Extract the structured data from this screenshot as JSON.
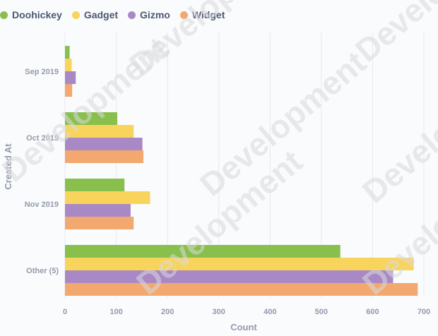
{
  "legend": {
    "items": [
      {
        "label": "Doohickey",
        "color": "#88bf4d"
      },
      {
        "label": "Gadget",
        "color": "#f9d45c"
      },
      {
        "label": "Gizmo",
        "color": "#a989c5"
      },
      {
        "label": "Widget",
        "color": "#f2a86f"
      }
    ]
  },
  "watermark": "Development",
  "chart_data": {
    "type": "bar",
    "orientation": "horizontal",
    "categories": [
      "Sep 2019",
      "Oct 2019",
      "Nov 2019",
      "Other (5)"
    ],
    "series": [
      {
        "name": "Doohickey",
        "color": "#88bf4d",
        "values": [
          9,
          102,
          116,
          537
        ]
      },
      {
        "name": "Gadget",
        "color": "#f9d45c",
        "values": [
          13,
          134,
          166,
          680
        ]
      },
      {
        "name": "Gizmo",
        "color": "#a989c5",
        "values": [
          21,
          151,
          128,
          640
        ]
      },
      {
        "name": "Widget",
        "color": "#f2a86f",
        "values": [
          14,
          153,
          134,
          688
        ]
      }
    ],
    "xlabel": "Count",
    "ylabel": "Created At",
    "xlim": [
      0,
      700
    ],
    "xticks": [
      0,
      100,
      200,
      300,
      400,
      500,
      600,
      700
    ],
    "grid": true,
    "legend_position": "top-left"
  }
}
